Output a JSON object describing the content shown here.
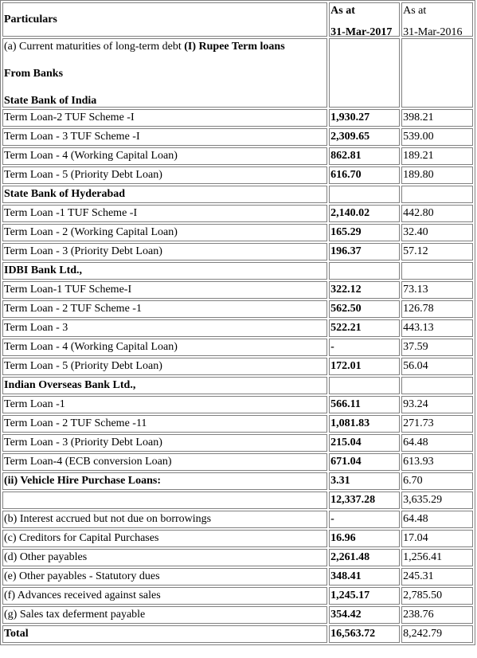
{
  "header": {
    "particulars": "Particulars",
    "col1_line1": "As at",
    "col1_line2": "31-Mar-2017",
    "col2_line1": "As at",
    "col2_line2": "31-Mar-2016"
  },
  "intro": {
    "line1_prefix": "(a) Current maturities of long-term debt ",
    "line1_bold": "(I) Rupee Term loans",
    "line2": "From Banks",
    "line3": "State Bank of India"
  },
  "rows": [
    {
      "label": "Term Loan-2 TUF Scheme -I",
      "v2017": "1,930.27",
      "v2016": "398.21"
    },
    {
      "label": "Term Loan - 3 TUF Scheme -I",
      "v2017": "2,309.65",
      "v2016": "539.00"
    },
    {
      "label": "Term Loan - 4 (Working Capital Loan)",
      "v2017": "862.81",
      "v2016": "189.21"
    },
    {
      "label": "Term Loan - 5 (Priority Debt Loan)",
      "v2017": "616.70",
      "v2016": "189.80"
    },
    {
      "label": "State Bank of Hyderabad",
      "v2017": "",
      "v2016": "",
      "heading": true
    },
    {
      "label": "Term Loan -1 TUF Scheme -I",
      "v2017": "2,140.02",
      "v2016": "442.80"
    },
    {
      "label": "Term Loan - 2 (Working Capital Loan)",
      "v2017": "165.29",
      "v2016": "32.40"
    },
    {
      "label": "Term Loan - 3 (Priority Debt Loan)",
      "v2017": "196.37",
      "v2016": "57.12"
    },
    {
      "label": "IDBI Bank Ltd.,",
      "v2017": "",
      "v2016": "",
      "heading": true
    },
    {
      "label": "Term Loan-1 TUF Scheme-I",
      "v2017": "322.12",
      "v2016": "73.13"
    },
    {
      "label": "Term Loan - 2 TUF Scheme -1",
      "v2017": "562.50",
      "v2016": "126.78"
    },
    {
      "label": "Term Loan - 3",
      "v2017": "522.21",
      "v2016": "443.13"
    },
    {
      "label": "Term Loan - 4 (Working Capital Loan)",
      "v2017": "-",
      "v2016": "37.59"
    },
    {
      "label": "Term Loan - 5 (Priority Debt Loan)",
      "v2017": "172.01",
      "v2016": "56.04"
    },
    {
      "label": "Indian Overseas Bank Ltd.,",
      "v2017": "",
      "v2016": "",
      "heading": true
    },
    {
      "label": "Term Loan -1",
      "v2017": "566.11",
      "v2016": "93.24"
    },
    {
      "label": "Term Loan - 2 TUF Scheme -11",
      "v2017": "1,081.83",
      "v2016": "271.73"
    },
    {
      "label": "Term Loan - 3 (Priority Debt Loan)",
      "v2017": "215.04",
      "v2016": "64.48"
    },
    {
      "label": "Term Loan-4 (ECB conversion Loan)",
      "v2017": "671.04",
      "v2016": "613.93"
    },
    {
      "label": "(ii) Vehicle Hire Purchase Loans:",
      "v2017": "3.31",
      "v2016": "6.70",
      "heading": true
    },
    {
      "label": "",
      "v2017": "12,337.28",
      "v2016": "3,635.29"
    },
    {
      "label": "(b) Interest accrued but not due on borrowings",
      "v2017": "-",
      "v2016": "64.48"
    },
    {
      "label": "(c) Creditors for Capital Purchases",
      "v2017": "16.96",
      "v2016": "17.04"
    },
    {
      "label": "(d) Other payables",
      "v2017": "2,261.48",
      "v2016": "1,256.41"
    },
    {
      "label": "(e) Other payables - Statutory dues",
      "v2017": "348.41",
      "v2016": "245.31"
    },
    {
      "label": "(f) Advances received against sales",
      "v2017": "1,245.17",
      "v2016": "2,785.50"
    },
    {
      "label": "(g) Sales tax deferment payable",
      "v2017": "354.42",
      "v2016": "238.76"
    },
    {
      "label": "Total",
      "v2017": "16,563.72",
      "v2016": "8,242.79",
      "heading": true
    }
  ]
}
